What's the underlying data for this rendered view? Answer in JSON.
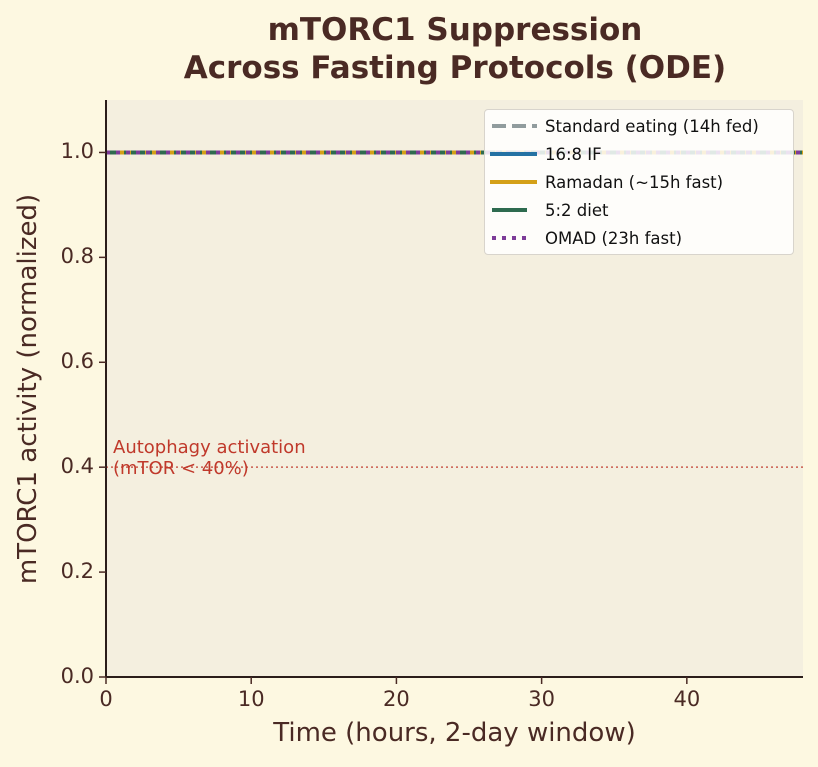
{
  "chart_data": {
    "type": "line",
    "title": "mTORC1 Suppression\nAcross Fasting Protocols (ODE)",
    "title_lines": [
      "mTORC1 Suppression",
      "Across Fasting Protocols (ODE)"
    ],
    "xlabel": "Time (hours, 2-day window)",
    "ylabel": "mTORC1 activity (normalized)",
    "xlim": [
      0,
      48
    ],
    "ylim": [
      0,
      1.1
    ],
    "xticks": [
      0,
      10,
      20,
      30,
      40
    ],
    "xtick_labels": [
      "0",
      "10",
      "20",
      "30",
      "40"
    ],
    "yticks": [
      0.0,
      0.2,
      0.4,
      0.6,
      0.8,
      1.0
    ],
    "ytick_labels": [
      "0.0",
      "0.2",
      "0.4",
      "0.6",
      "0.8",
      "1.0"
    ],
    "grid": false,
    "legend_position": "upper right",
    "x": [
      0,
      48
    ],
    "series": [
      {
        "name": "Standard eating (14h fed)",
        "values": [
          1.0,
          1.0
        ],
        "color": "#7f8c8d",
        "style": "dashed"
      },
      {
        "name": "16:8 IF",
        "values": [
          1.0,
          1.0
        ],
        "color": "#2471a3",
        "style": "solid"
      },
      {
        "name": "Ramadan (~15h fast)",
        "values": [
          1.0,
          1.0
        ],
        "color": "#d4a017",
        "style": "solid"
      },
      {
        "name": "5:2 diet",
        "values": [
          1.0,
          1.0
        ],
        "color": "#2e6b4f",
        "style": "dashdot"
      },
      {
        "name": "OMAD (23h fast)",
        "values": [
          1.0,
          1.0
        ],
        "color": "#7d3c98",
        "style": "dotted"
      }
    ],
    "annotations": [
      {
        "type": "hline",
        "y": 0.4,
        "color": "#c0392b",
        "style": "dotted"
      },
      {
        "type": "text",
        "text": "Autophagy activation\n(mTOR < 40%)",
        "lines": [
          "Autophagy activation",
          "(mTOR < 40%)"
        ],
        "x": 0.5,
        "y": 0.4,
        "color": "#c0392b"
      }
    ]
  },
  "colors": {
    "background": "#fdf8e1",
    "axes_background": "#f4efdf",
    "text": "#4a2a24",
    "threshold": "#c0392b"
  }
}
